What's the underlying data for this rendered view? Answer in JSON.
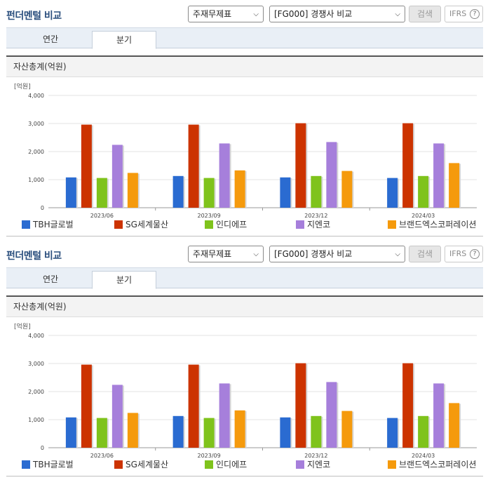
{
  "header": {
    "title": "펀더멘털 비교",
    "select_type": "주재무제표",
    "select_compare": "[FG000] 경쟁사 비교",
    "search_label": "검색",
    "ifrs_label": "IFRS",
    "help_label": "?"
  },
  "tabs": [
    {
      "label": "연간",
      "active": false
    },
    {
      "label": "분기",
      "active": true
    }
  ],
  "section_title": "자산총계(억원)",
  "chart_data": {
    "type": "bar",
    "unit_label": "[억원]",
    "categories": [
      "2023/06",
      "2023/09",
      "2023/12",
      "2024/03"
    ],
    "ylim": [
      0,
      4000
    ],
    "yticks": [
      0,
      1000,
      2000,
      3000,
      4000
    ],
    "ytick_labels": [
      "0",
      "1,000",
      "2,000",
      "3,000",
      "4,000"
    ],
    "grid": true,
    "legend_position": "bottom",
    "series": [
      {
        "name": "TBH글로벌",
        "color": "#2a6bd1",
        "values": [
          1080,
          1130,
          1080,
          1060
        ]
      },
      {
        "name": "SG세계물산",
        "color": "#cc3300",
        "values": [
          2960,
          2960,
          3010,
          3010
        ]
      },
      {
        "name": "인디에프",
        "color": "#7fc31c",
        "values": [
          1060,
          1060,
          1130,
          1130
        ]
      },
      {
        "name": "지엔코",
        "color": "#a67fdb",
        "values": [
          2240,
          2290,
          2340,
          2290
        ]
      },
      {
        "name": "브랜드엑스코퍼레이션",
        "color": "#f59a0c",
        "values": [
          1240,
          1330,
          1310,
          1590
        ]
      }
    ]
  }
}
